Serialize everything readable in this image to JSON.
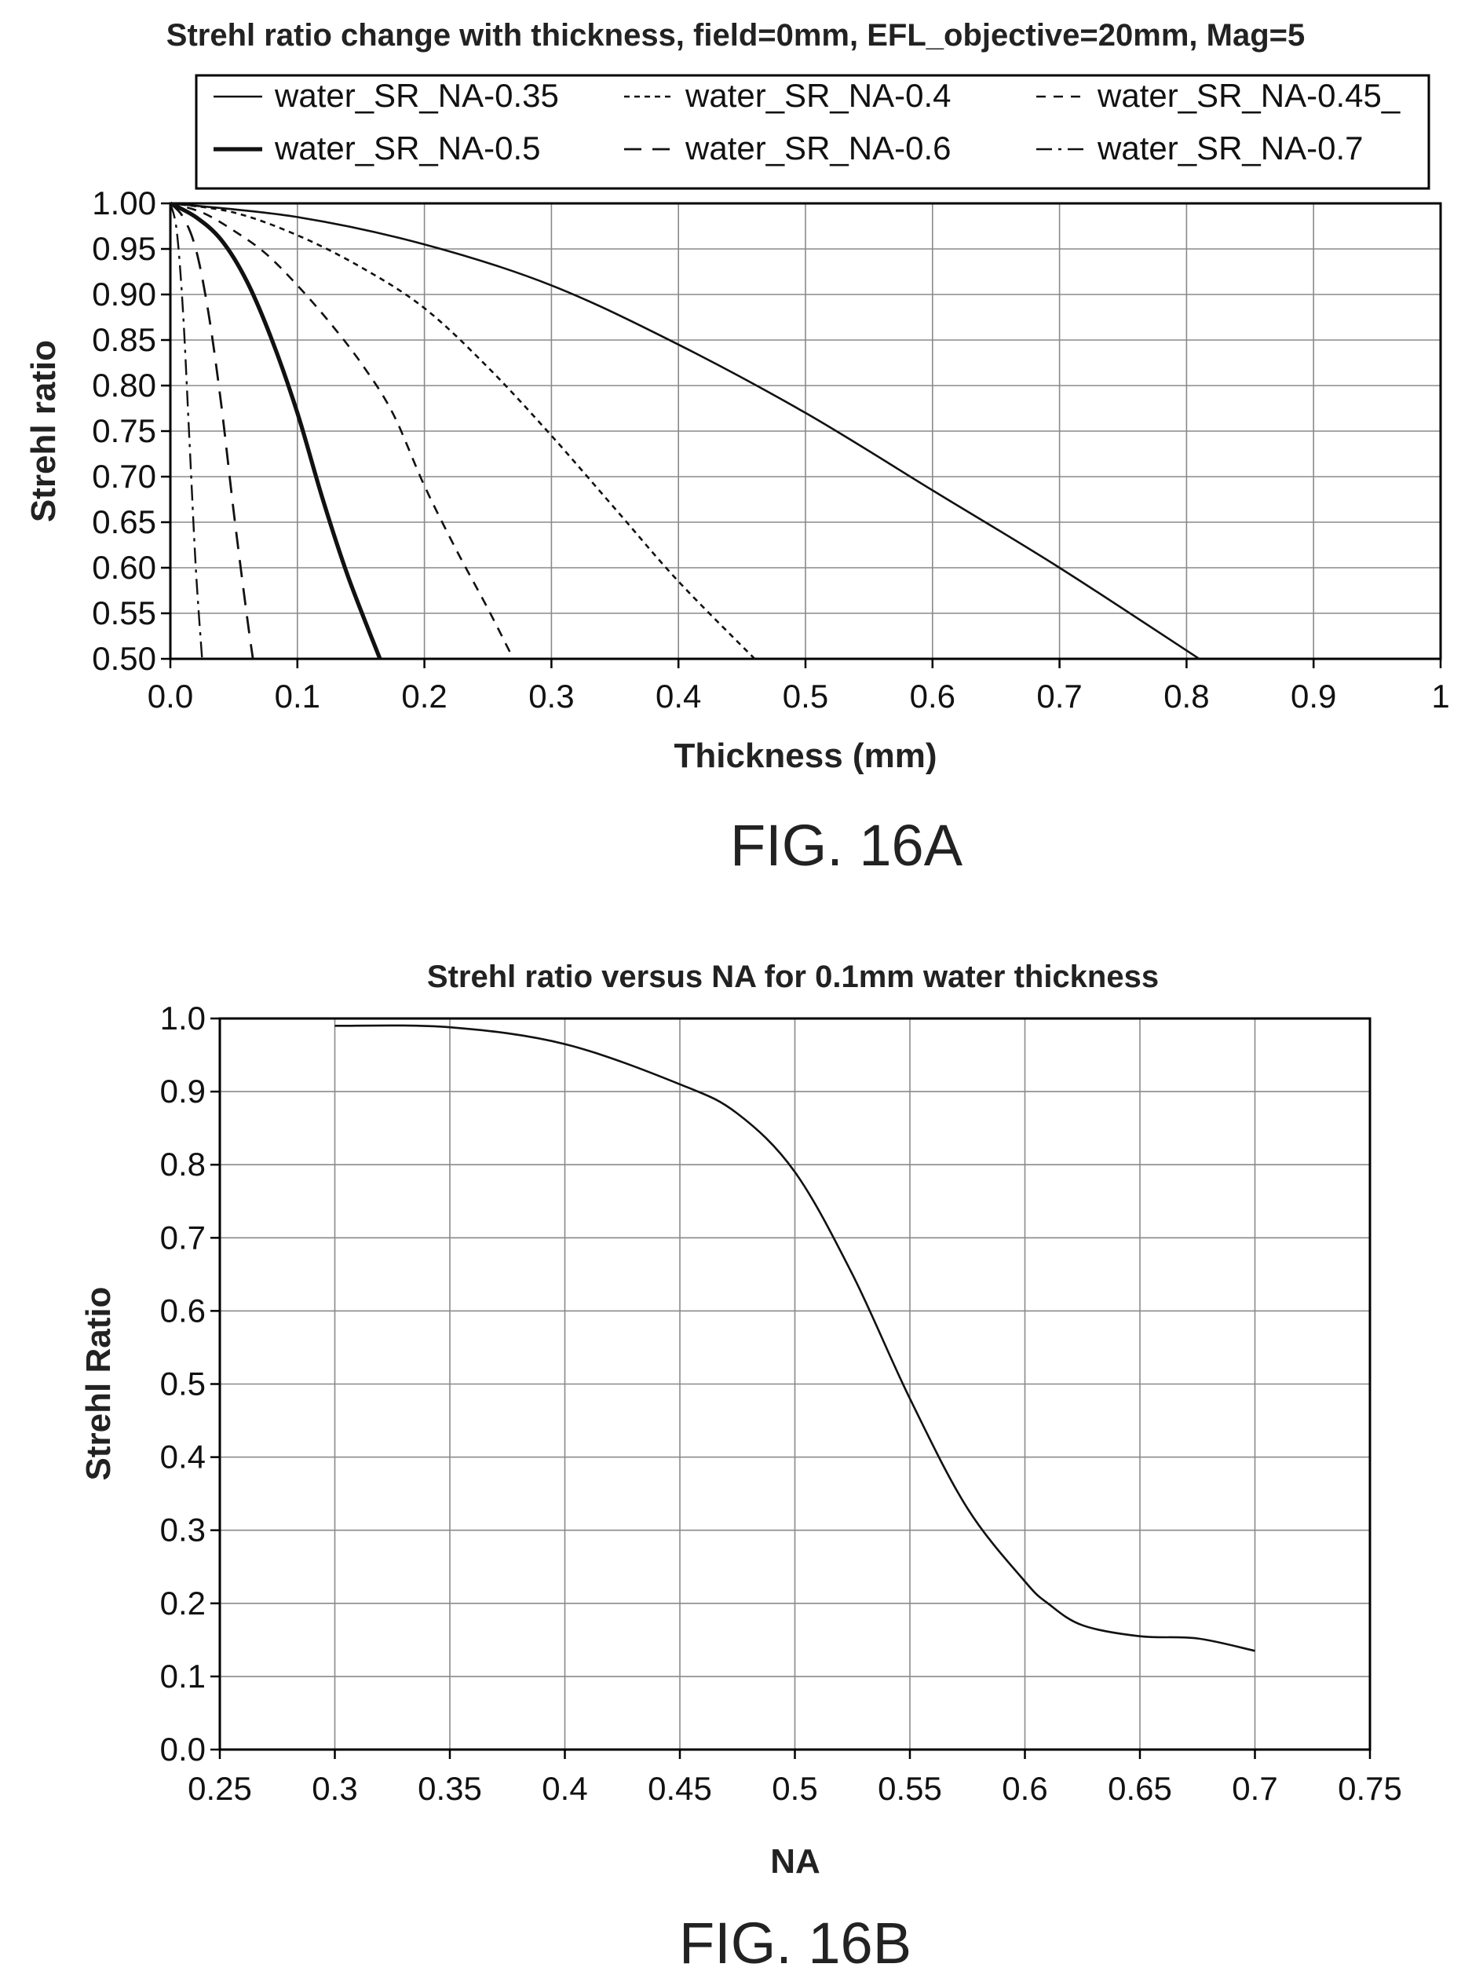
{
  "chart_data": [
    {
      "type": "line",
      "figure_label": "FIG. 16A",
      "title": "Strehl ratio change with thickness, field=0mm, EFL_objective=20mm, Mag=5",
      "xlabel": "Thickness (mm)",
      "ylabel": "Strehl ratio",
      "xlim": [
        0,
        1
      ],
      "ylim": [
        0.5,
        1.0
      ],
      "x_ticks": [
        0.0,
        0.1,
        0.2,
        0.3,
        0.4,
        0.5,
        0.6,
        0.7,
        0.8,
        0.9,
        1
      ],
      "x_tick_labels": [
        "0.0",
        "0.1",
        "0.2",
        "0.3",
        "0.4",
        "0.5",
        "0.6",
        "0.7",
        "0.8",
        "0.9",
        "1"
      ],
      "y_ticks": [
        0.5,
        0.55,
        0.6,
        0.65,
        0.7,
        0.75,
        0.8,
        0.85,
        0.9,
        0.95,
        1.0
      ],
      "y_tick_labels": [
        "0.50",
        "0.55",
        "0.60",
        "0.65",
        "0.70",
        "0.75",
        "0.80",
        "0.85",
        "0.90",
        "0.95",
        "1.00"
      ],
      "grid": true,
      "legend_position": "top",
      "series": [
        {
          "name": "water_SR_NA-0.35",
          "style": "solid",
          "x": [
            0,
            0.1,
            0.2,
            0.3,
            0.4,
            0.5,
            0.6,
            0.7,
            0.81
          ],
          "y": [
            1.0,
            0.985,
            0.955,
            0.91,
            0.845,
            0.77,
            0.685,
            0.6,
            0.5
          ]
        },
        {
          "name": "water_SR_NA-0.4",
          "style": "dotted",
          "x": [
            0,
            0.05,
            0.1,
            0.15,
            0.2,
            0.25,
            0.3,
            0.35,
            0.4,
            0.46
          ],
          "y": [
            1.0,
            0.99,
            0.965,
            0.93,
            0.885,
            0.82,
            0.745,
            0.665,
            0.585,
            0.5
          ]
        },
        {
          "name": "water_SR_NA-0.45_",
          "style": "short-dash",
          "x": [
            0,
            0.025,
            0.05,
            0.075,
            0.1,
            0.125,
            0.15,
            0.175,
            0.2,
            0.225,
            0.25,
            0.27
          ],
          "y": [
            1.0,
            0.99,
            0.97,
            0.945,
            0.91,
            0.87,
            0.825,
            0.77,
            0.69,
            0.62,
            0.555,
            0.5
          ]
        },
        {
          "name": "water_SR_NA-0.5",
          "style": "bold",
          "x": [
            0,
            0.02,
            0.04,
            0.06,
            0.08,
            0.1,
            0.12,
            0.14,
            0.165
          ],
          "y": [
            1.0,
            0.985,
            0.96,
            0.915,
            0.85,
            0.77,
            0.675,
            0.59,
            0.5
          ]
        },
        {
          "name": "water_SR_NA-0.6",
          "style": "long-dash",
          "x": [
            0,
            0.01,
            0.02,
            0.03,
            0.04,
            0.05,
            0.06,
            0.065
          ],
          "y": [
            1.0,
            0.985,
            0.95,
            0.88,
            0.78,
            0.66,
            0.55,
            0.5
          ]
        },
        {
          "name": "water_SR_NA-0.7",
          "style": "dash-dot",
          "x": [
            0,
            0.005,
            0.01,
            0.015,
            0.02,
            0.025
          ],
          "y": [
            1.0,
            0.97,
            0.88,
            0.74,
            0.6,
            0.5
          ]
        }
      ]
    },
    {
      "type": "line",
      "figure_label": "FIG. 16B",
      "title": "Strehl ratio versus NA for 0.1mm water thickness",
      "xlabel": "NA",
      "ylabel": "Strehl Ratio",
      "xlim": [
        0.25,
        0.75
      ],
      "ylim": [
        0.0,
        1.0
      ],
      "x_ticks": [
        0.25,
        0.3,
        0.35,
        0.4,
        0.45,
        0.5,
        0.55,
        0.6,
        0.65,
        0.7,
        0.75
      ],
      "x_tick_labels": [
        "0.25",
        "0.3",
        "0.35",
        "0.4",
        "0.45",
        "0.5",
        "0.55",
        "0.6",
        "0.65",
        "0.7",
        "0.75"
      ],
      "y_ticks": [
        0.0,
        0.1,
        0.2,
        0.3,
        0.4,
        0.5,
        0.6,
        0.7,
        0.8,
        0.9,
        1.0
      ],
      "y_tick_labels": [
        "0.0",
        "0.1",
        "0.2",
        "0.3",
        "0.4",
        "0.5",
        "0.6",
        "0.7",
        "0.8",
        "0.9",
        "1.0"
      ],
      "grid": true,
      "series": [
        {
          "style": "solid",
          "x": [
            0.3,
            0.35,
            0.4,
            0.45,
            0.475,
            0.5,
            0.525,
            0.55,
            0.575,
            0.6,
            0.61,
            0.625,
            0.65,
            0.675,
            0.7
          ],
          "y": [
            0.99,
            0.988,
            0.965,
            0.91,
            0.87,
            0.79,
            0.65,
            0.48,
            0.33,
            0.23,
            0.2,
            0.17,
            0.155,
            0.152,
            0.135
          ]
        }
      ]
    }
  ]
}
